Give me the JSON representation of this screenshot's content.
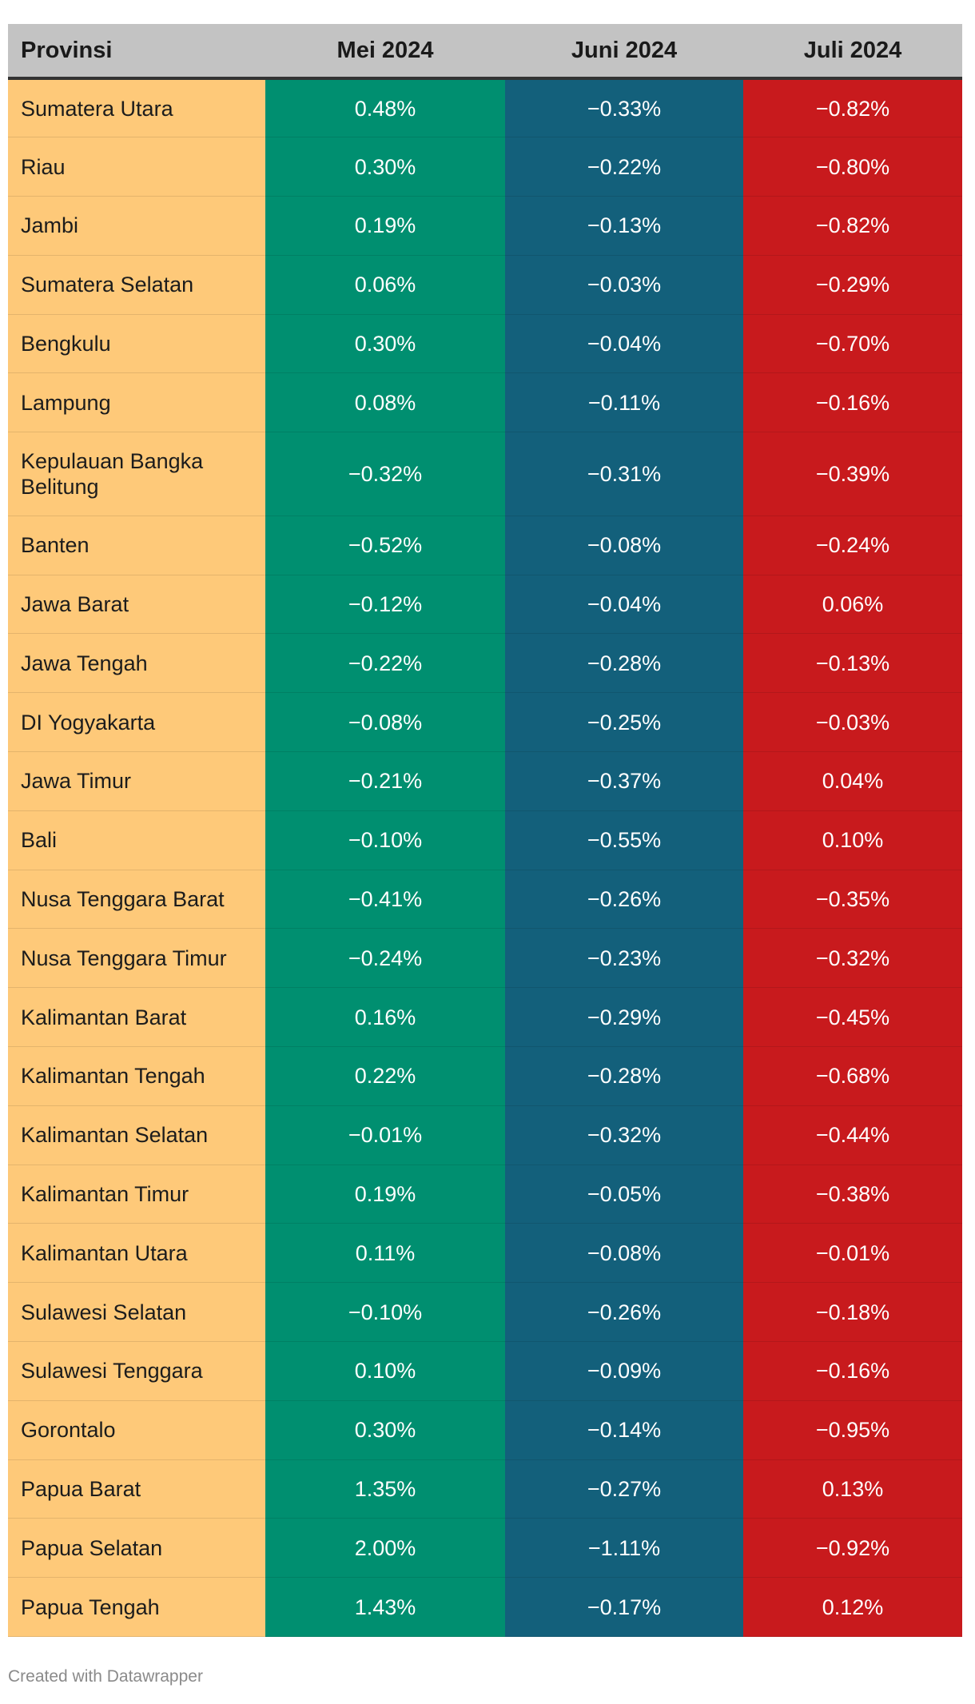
{
  "chart_data": {
    "type": "table",
    "columns": [
      "Provinsi",
      "Mei 2024",
      "Juni 2024",
      "Juli 2024"
    ],
    "rows": [
      {
        "provinsi": "Sumatera Utara",
        "mei": "0.48%",
        "juni": "−0.33%",
        "juli": "−0.82%"
      },
      {
        "provinsi": "Riau",
        "mei": "0.30%",
        "juni": "−0.22%",
        "juli": "−0.80%"
      },
      {
        "provinsi": "Jambi",
        "mei": "0.19%",
        "juni": "−0.13%",
        "juli": "−0.82%"
      },
      {
        "provinsi": "Sumatera Selatan",
        "mei": "0.06%",
        "juni": "−0.03%",
        "juli": "−0.29%"
      },
      {
        "provinsi": "Bengkulu",
        "mei": "0.30%",
        "juni": "−0.04%",
        "juli": "−0.70%"
      },
      {
        "provinsi": "Lampung",
        "mei": "0.08%",
        "juni": "−0.11%",
        "juli": "−0.16%"
      },
      {
        "provinsi": "Kepulauan Bangka Belitung",
        "mei": "−0.32%",
        "juni": "−0.31%",
        "juli": "−0.39%"
      },
      {
        "provinsi": "Banten",
        "mei": "−0.52%",
        "juni": "−0.08%",
        "juli": "−0.24%"
      },
      {
        "provinsi": "Jawa Barat",
        "mei": "−0.12%",
        "juni": "−0.04%",
        "juli": "0.06%"
      },
      {
        "provinsi": "Jawa Tengah",
        "mei": "−0.22%",
        "juni": "−0.28%",
        "juli": "−0.13%"
      },
      {
        "provinsi": "DI Yogyakarta",
        "mei": "−0.08%",
        "juni": "−0.25%",
        "juli": "−0.03%"
      },
      {
        "provinsi": "Jawa Timur",
        "mei": "−0.21%",
        "juni": "−0.37%",
        "juli": "0.04%"
      },
      {
        "provinsi": "Bali",
        "mei": "−0.10%",
        "juni": "−0.55%",
        "juli": "0.10%"
      },
      {
        "provinsi": "Nusa Tenggara Barat",
        "mei": "−0.41%",
        "juni": "−0.26%",
        "juli": "−0.35%"
      },
      {
        "provinsi": "Nusa Tenggara Timur",
        "mei": "−0.24%",
        "juni": "−0.23%",
        "juli": "−0.32%"
      },
      {
        "provinsi": "Kalimantan Barat",
        "mei": "0.16%",
        "juni": "−0.29%",
        "juli": "−0.45%"
      },
      {
        "provinsi": "Kalimantan Tengah",
        "mei": "0.22%",
        "juni": "−0.28%",
        "juli": "−0.68%"
      },
      {
        "provinsi": "Kalimantan Selatan",
        "mei": "−0.01%",
        "juni": "−0.32%",
        "juli": "−0.44%"
      },
      {
        "provinsi": "Kalimantan Timur",
        "mei": "0.19%",
        "juni": "−0.05%",
        "juli": "−0.38%"
      },
      {
        "provinsi": "Kalimantan Utara",
        "mei": "0.11%",
        "juni": "−0.08%",
        "juli": "−0.01%"
      },
      {
        "provinsi": "Sulawesi Selatan",
        "mei": "−0.10%",
        "juni": "−0.26%",
        "juli": "−0.18%"
      },
      {
        "provinsi": "Sulawesi Tenggara",
        "mei": "0.10%",
        "juni": "−0.09%",
        "juli": "−0.16%"
      },
      {
        "provinsi": "Gorontalo",
        "mei": "0.30%",
        "juni": "−0.14%",
        "juli": "−0.95%"
      },
      {
        "provinsi": "Papua Barat",
        "mei": "1.35%",
        "juni": "−0.27%",
        "juli": "0.13%"
      },
      {
        "provinsi": "Papua Selatan",
        "mei": "2.00%",
        "juni": "−1.11%",
        "juli": "−0.92%"
      },
      {
        "provinsi": "Papua Tengah",
        "mei": "1.43%",
        "juni": "−0.17%",
        "juli": "0.12%"
      }
    ],
    "colors": {
      "header": "#c3c3c3",
      "provinsi": "#fec979",
      "mei": "#008f70",
      "juni": "#13607b",
      "juli": "#c81a1d"
    }
  },
  "footer": {
    "credit": "Created with Datawrapper"
  }
}
